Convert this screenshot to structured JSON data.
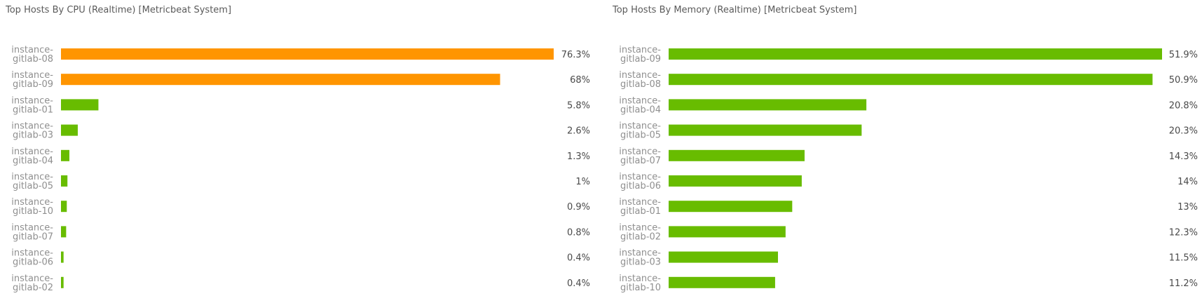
{
  "panels": [
    {
      "title": "Top Hosts By CPU (Realtime) [Metricbeat System]",
      "chart_data": {
        "type": "bar",
        "orientation": "horizontal",
        "categories": [
          "instance-gitlab-08",
          "instance-gitlab-09",
          "instance-gitlab-01",
          "instance-gitlab-03",
          "instance-gitlab-04",
          "instance-gitlab-05",
          "instance-gitlab-10",
          "instance-gitlab-07",
          "instance-gitlab-06",
          "instance-gitlab-02"
        ],
        "values": [
          76.3,
          68,
          5.8,
          2.6,
          1.3,
          1,
          0.9,
          0.8,
          0.4,
          0.4
        ],
        "value_labels": [
          "76.3%",
          "68%",
          "5.8%",
          "2.6%",
          "1.3%",
          "1%",
          "0.9%",
          "0.8%",
          "0.4%",
          "0.4%"
        ],
        "bar_colors": [
          "#ff9500",
          "#ff9500",
          "#68bc00",
          "#68bc00",
          "#68bc00",
          "#68bc00",
          "#68bc00",
          "#68bc00",
          "#68bc00",
          "#68bc00"
        ],
        "unit": "%",
        "grid": false,
        "legend": "none"
      }
    },
    {
      "title": "Top Hosts By Memory (Realtime) [Metricbeat System]",
      "chart_data": {
        "type": "bar",
        "orientation": "horizontal",
        "categories": [
          "instance-gitlab-09",
          "instance-gitlab-08",
          "instance-gitlab-04",
          "instance-gitlab-05",
          "instance-gitlab-07",
          "instance-gitlab-06",
          "instance-gitlab-01",
          "instance-gitlab-02",
          "instance-gitlab-03",
          "instance-gitlab-10"
        ],
        "values": [
          51.9,
          50.9,
          20.8,
          20.3,
          14.3,
          14,
          13,
          12.3,
          11.5,
          11.2
        ],
        "value_labels": [
          "51.9%",
          "50.9%",
          "20.8%",
          "20.3%",
          "14.3%",
          "14%",
          "13%",
          "12.3%",
          "11.5%",
          "11.2%"
        ],
        "bar_colors": [
          "#68bc00",
          "#68bc00",
          "#68bc00",
          "#68bc00",
          "#68bc00",
          "#68bc00",
          "#68bc00",
          "#68bc00",
          "#68bc00",
          "#68bc00"
        ],
        "unit": "%",
        "grid": false,
        "legend": "none"
      }
    }
  ]
}
